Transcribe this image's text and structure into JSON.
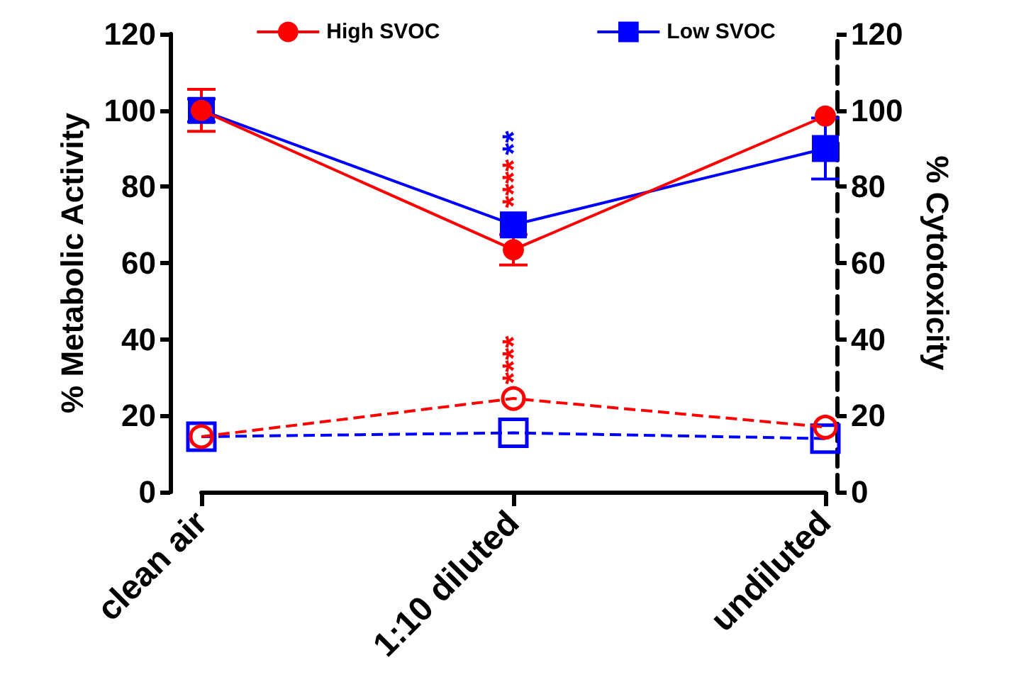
{
  "chart_data": {
    "type": "line",
    "ylabel": "% Metabolic Activity",
    "y2label": "% Cytotoxicity",
    "categories": [
      "clean air",
      "1:10 diluted",
      "undiluted"
    ],
    "series": [
      {
        "name": "High SVOC",
        "color": "#ff0000",
        "values": [
          100,
          63.5,
          98.5
        ],
        "errors": [
          5.5,
          4,
          null
        ],
        "marker": "circle",
        "line_style": "solid"
      },
      {
        "name": "Low SVOC",
        "color": "#0000ff",
        "values": [
          100,
          70,
          90
        ],
        "errors": [
          3,
          null,
          8
        ],
        "marker": "square",
        "line_style": "solid"
      },
      {
        "color": "#ff0000",
        "values": [
          14.5,
          24.5,
          17
        ],
        "axis": "y2",
        "marker": "circle",
        "line_style": "dashed"
      },
      {
        "color": "#0000ff",
        "values": [
          14.5,
          15.5,
          14
        ],
        "axis": "y2",
        "marker": "square",
        "line_style": "dashed"
      }
    ],
    "annotations": [
      {
        "text": "**",
        "x": "1:10 diluted",
        "y": 70
      },
      {
        "text": "****",
        "x": "1:10 diluted",
        "y": 63.5
      },
      {
        "text": "****",
        "x": "1:10 diluted",
        "y": 24.5
      }
    ],
    "ylim": [
      0,
      120
    ],
    "yticks": [
      0,
      20,
      40,
      60,
      80,
      100,
      120
    ],
    "y2lim": [
      0,
      120
    ],
    "y2ticks": [
      0,
      20,
      40,
      60,
      80,
      100,
      120
    ],
    "grid": false,
    "legend": "top"
  }
}
